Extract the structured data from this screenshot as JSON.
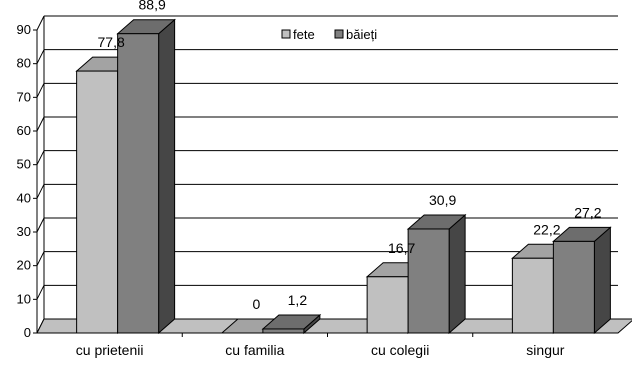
{
  "chart_data": {
    "type": "bar",
    "subtype": "3d-clustered-column",
    "categories": [
      "cu prietenii",
      "cu familia",
      "cu colegii",
      "singur"
    ],
    "series": [
      {
        "name": "fete",
        "values": [
          77.8,
          0,
          16.7,
          22.2
        ],
        "labels": [
          "77,8",
          "0",
          "16,7",
          "22,2"
        ],
        "color": "#c0c0c0"
      },
      {
        "name": "băieți",
        "values": [
          88.9,
          1.2,
          30.9,
          27.2
        ],
        "labels": [
          "88,9",
          "1,2",
          "30,9",
          "27,2"
        ],
        "color": "#808080"
      }
    ],
    "ylim": [
      0,
      90
    ],
    "yticks": [
      0,
      10,
      20,
      30,
      40,
      50,
      60,
      70,
      80,
      90
    ],
    "grid": true,
    "legend": "top-center",
    "floor_color": "#c0c0c0"
  }
}
